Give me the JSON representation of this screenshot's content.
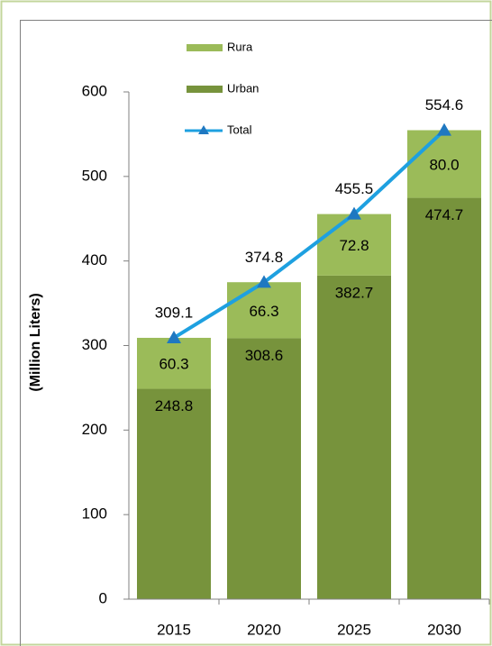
{
  "chart_data": {
    "type": "bar",
    "stacked": true,
    "y_label": "(Million Liters)",
    "categories": [
      "2015",
      "2020",
      "2025",
      "2030"
    ],
    "series": [
      {
        "name": "Urban",
        "color": "#77933c",
        "values": [
          248.8,
          308.6,
          382.7,
          474.7
        ]
      },
      {
        "name": "Rura",
        "color": "#9bbb59",
        "values": [
          60.3,
          66.3,
          72.8,
          80.0
        ],
        "value_labels": [
          "60.3",
          "66.3",
          "72.8",
          "80.0"
        ]
      },
      {
        "name": "Total",
        "type": "line",
        "color": "#1ea0e0",
        "marker_color": "#1f78c1",
        "values": [
          309.1,
          374.8,
          455.5,
          554.6
        ]
      }
    ],
    "ylim": [
      0,
      600
    ],
    "yticks": [
      0,
      100,
      200,
      300,
      400,
      500,
      600
    ]
  }
}
